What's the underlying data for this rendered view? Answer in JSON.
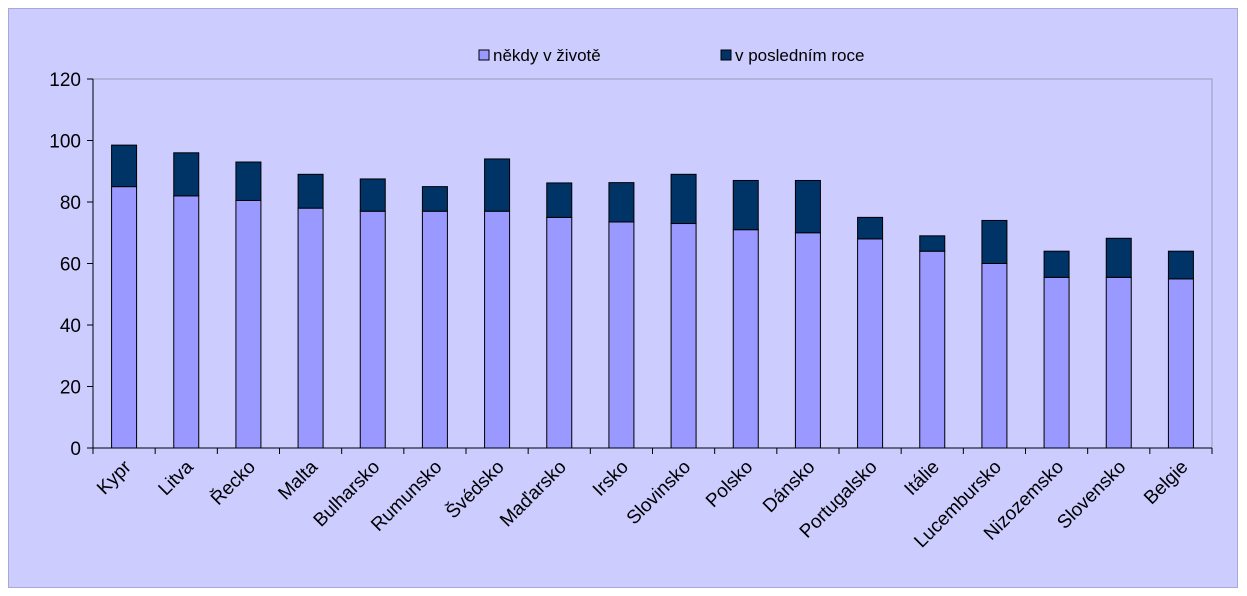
{
  "chart_data": {
    "type": "bar",
    "stacked": true,
    "categories": [
      "Kypr",
      "Litva",
      "Řecko",
      "Malta",
      "Bulharsko",
      "Rumunsko",
      "Švédsko",
      "Maďarsko",
      "Irsko",
      "Slovinsko",
      "Polsko",
      "Dánsko",
      "Portugalsko",
      "Itálie",
      "Lucembursko",
      "Nizozemsko",
      "Slovensko",
      "Belgie"
    ],
    "series": [
      {
        "name": "někdy v životě",
        "color": "#9999ff",
        "values": [
          85,
          82,
          80.5,
          78,
          77,
          77,
          77,
          75,
          73.5,
          73,
          71,
          70,
          68,
          64,
          60,
          55.5,
          55.5,
          55
        ]
      },
      {
        "name": "v posledním roce",
        "color": "#003366",
        "values": [
          13.5,
          14,
          12.5,
          11,
          10.5,
          8,
          17,
          11.2,
          12.8,
          16,
          16,
          17,
          7,
          5,
          14,
          8.5,
          12.7,
          9
        ]
      }
    ],
    "ylim": [
      0,
      120
    ],
    "yticks": [
      "0",
      "20",
      "40",
      "60",
      "80",
      "100",
      "120"
    ],
    "xlabel": "",
    "ylabel": "",
    "title": "",
    "legend_position": "top",
    "grid": false,
    "plot_background": "#ccccff"
  }
}
